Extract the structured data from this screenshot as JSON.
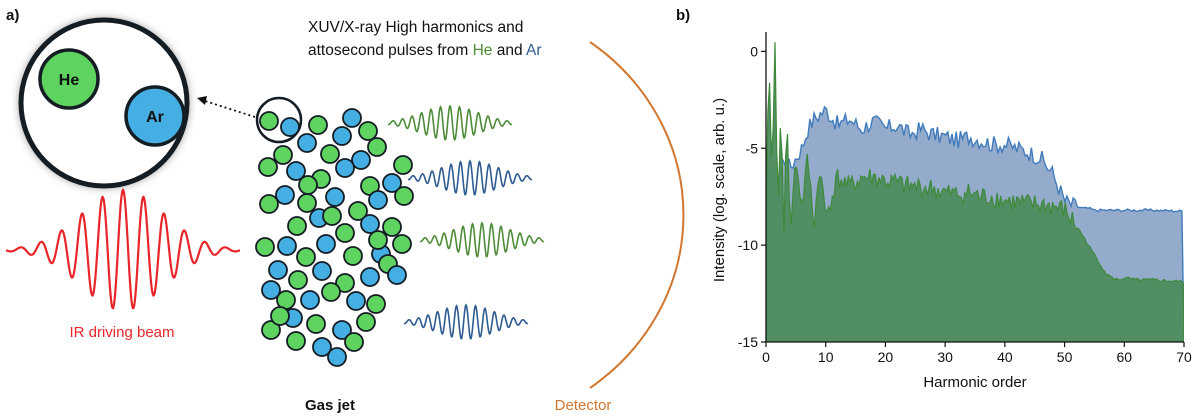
{
  "panel_a": {
    "label": "a)",
    "title_line1": "XUV/X-ray High harmonics and",
    "title_line2_prefix": "attosecond pulses from ",
    "title_he": "He",
    "title_and": " and ",
    "title_ar": "Ar",
    "zoom_he": "He",
    "zoom_ar": "Ar",
    "ir_label": "IR driving beam",
    "gas_jet_label": "Gas jet",
    "detector_label": "Detector",
    "colors": {
      "he": "#5fd35f",
      "ar": "#45aee3",
      "ir": "#e8262a",
      "pulse_green": "#4f8c3a",
      "pulse_blue": "#2f5b91",
      "detector": "#d2772f"
    }
  },
  "panel_b": {
    "label": "b)",
    "chart_data": {
      "type": "area",
      "xlabel": "Harmonic order",
      "ylabel": "Intensity (log. scale, arb. u.)",
      "xlim": [
        0,
        70
      ],
      "ylim": [
        -15,
        1
      ],
      "x_ticks": [
        "0",
        "10",
        "20",
        "30",
        "40",
        "50",
        "60",
        "70"
      ],
      "y_ticks": [
        "0",
        "-5",
        "-10",
        "-15"
      ],
      "series": [
        {
          "name": "Ar",
          "color": "#3f7bbd",
          "fill": "#8fa7c8",
          "x": [
            0,
            1,
            2,
            3,
            4,
            5,
            6,
            7,
            8,
            10,
            12,
            14,
            16,
            18,
            20,
            22,
            24,
            26,
            28,
            30,
            32,
            34,
            36,
            38,
            40,
            42,
            44,
            46,
            48,
            49,
            50,
            51,
            52,
            53,
            54,
            55,
            60,
            65,
            70
          ],
          "values": [
            -6.5,
            -6.0,
            -6.5,
            -5.5,
            -6.0,
            -5.5,
            -5.0,
            -4.0,
            -3.5,
            -3.0,
            -3.8,
            -3.5,
            -4.0,
            -3.6,
            -4.0,
            -3.8,
            -4.3,
            -4.0,
            -4.3,
            -4.4,
            -4.6,
            -4.4,
            -4.6,
            -4.8,
            -4.8,
            -5.0,
            -5.2,
            -5.5,
            -6.3,
            -7.0,
            -7.7,
            -7.9,
            -8.0,
            -8.1,
            -8.1,
            -8.2,
            -8.2,
            -8.2,
            -8.25
          ]
        },
        {
          "name": "He",
          "color": "#3e8a3a",
          "fill": "#4f8c5f",
          "x": [
            0,
            0.5,
            1,
            1.5,
            2,
            2.5,
            3,
            3.5,
            4,
            5,
            6,
            7,
            8,
            9,
            10,
            12,
            14,
            16,
            18,
            20,
            22,
            24,
            26,
            28,
            30,
            32,
            34,
            36,
            38,
            40,
            42,
            44,
            46,
            48,
            50,
            52,
            54,
            56,
            57,
            58,
            59,
            60,
            62,
            65,
            70
          ],
          "values": [
            -9.5,
            0.2,
            -7.0,
            0.3,
            -8.0,
            -3.5,
            -9.0,
            -2.5,
            -9.5,
            -5.5,
            -8.0,
            -5.5,
            -9.0,
            -6.0,
            -8.5,
            -6.5,
            -7.0,
            -6.5,
            -6.5,
            -6.7,
            -6.8,
            -7.0,
            -7.0,
            -7.1,
            -7.3,
            -7.4,
            -7.3,
            -7.5,
            -7.5,
            -7.7,
            -7.8,
            -7.9,
            -7.9,
            -8.0,
            -8.2,
            -9.0,
            -10.0,
            -11.0,
            -11.5,
            -11.7,
            -11.8,
            -11.7,
            -11.8,
            -11.8,
            -11.9
          ]
        }
      ]
    }
  }
}
